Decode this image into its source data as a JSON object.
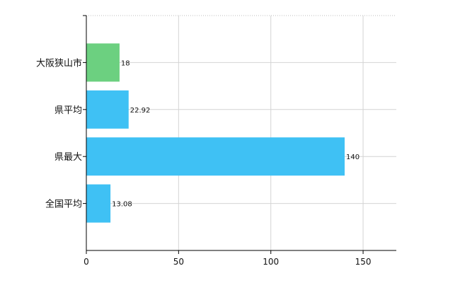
{
  "chart_data": {
    "type": "bar",
    "orientation": "horizontal",
    "categories": [
      "大阪狭山市",
      "県平均",
      "県最大",
      "全国平均"
    ],
    "values": [
      18,
      22.92,
      140,
      13.08
    ],
    "data_labels": [
      "18",
      "22.92",
      "140",
      "13.08"
    ],
    "colors": [
      "#6cd080",
      "#3fc1f4",
      "#3fc1f4",
      "#3fc1f4"
    ],
    "xlim": [
      0,
      168
    ],
    "xticks": [
      0,
      50,
      100,
      150
    ],
    "xtick_labels": [
      "0",
      "50",
      "100",
      "150"
    ],
    "grid": true,
    "legend": "none"
  }
}
